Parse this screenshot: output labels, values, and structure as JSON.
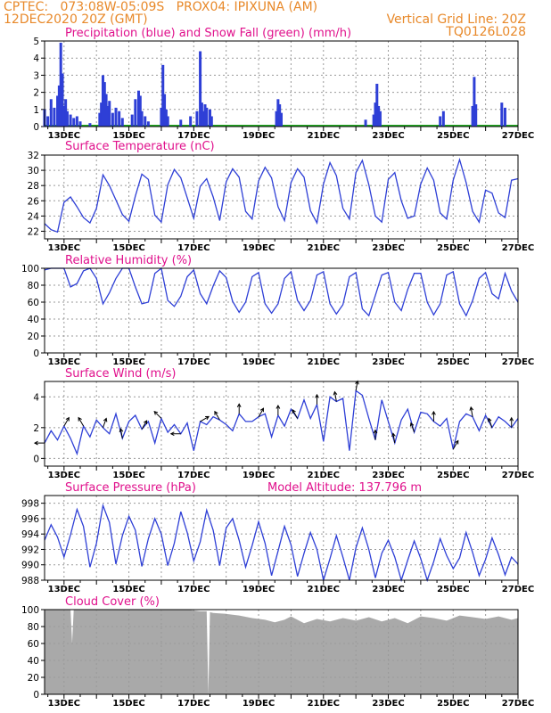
{
  "header": {
    "line1_left": "CPTEC:   073:08W-05:09S   PROX04: IPIXUNA (AM)",
    "line2_left": "12DEC2020 20Z (GMT)",
    "line2_right": "Vertical Grid Line: 20Z",
    "line3_right": "TQ0126L028"
  },
  "colors": {
    "header": "#e8892a",
    "title": "#e0108c",
    "line": "#2e3fd6",
    "snow": "#22aa22",
    "cloud": "#a9a9a9",
    "grid": "#9a9a9a"
  },
  "date_labels": [
    "13DEC",
    "15DEC",
    "17DEC",
    "19DEC",
    "21DEC",
    "23DEC",
    "25DEC",
    "27DEC"
  ],
  "chart_data": [
    {
      "type": "bar",
      "title": "Precipitation (blue) and Snow Fall (green) (mm/h)",
      "ylim": [
        0,
        5
      ],
      "yticks": [
        0,
        1,
        2,
        3,
        4,
        5
      ],
      "grid": true,
      "x_range_days": [
        12.4,
        27.0
      ],
      "series": [
        {
          "name": "Precipitation",
          "color": "#2e3fd6",
          "values": [
            [
              12.4,
              1.0
            ],
            [
              12.5,
              0.6
            ],
            [
              12.6,
              1.6
            ],
            [
              12.7,
              1.1
            ],
            [
              12.8,
              1.8
            ],
            [
              12.85,
              2.4
            ],
            [
              12.9,
              4.9
            ],
            [
              12.95,
              3.1
            ],
            [
              13.0,
              1.2
            ],
            [
              13.05,
              1.6
            ],
            [
              13.1,
              0.9
            ],
            [
              13.2,
              0.7
            ],
            [
              13.3,
              0.5
            ],
            [
              13.4,
              0.6
            ],
            [
              13.5,
              0.3
            ],
            [
              13.8,
              0.2
            ],
            [
              14.1,
              0.8
            ],
            [
              14.15,
              1.4
            ],
            [
              14.2,
              3.0
            ],
            [
              14.25,
              2.6
            ],
            [
              14.3,
              1.9
            ],
            [
              14.35,
              1.2
            ],
            [
              14.4,
              1.5
            ],
            [
              14.5,
              0.8
            ],
            [
              14.6,
              1.1
            ],
            [
              14.7,
              0.9
            ],
            [
              14.8,
              0.5
            ],
            [
              15.1,
              0.7
            ],
            [
              15.2,
              1.6
            ],
            [
              15.3,
              2.1
            ],
            [
              15.35,
              1.8
            ],
            [
              15.4,
              0.9
            ],
            [
              15.5,
              0.6
            ],
            [
              15.6,
              0.3
            ],
            [
              16.0,
              1.1
            ],
            [
              16.05,
              3.6
            ],
            [
              16.1,
              1.9
            ],
            [
              16.15,
              1.0
            ],
            [
              16.2,
              0.6
            ],
            [
              16.6,
              0.4
            ],
            [
              16.9,
              0.6
            ],
            [
              17.1,
              0.9
            ],
            [
              17.2,
              4.4
            ],
            [
              17.25,
              1.4
            ],
            [
              17.3,
              0.9
            ],
            [
              17.35,
              1.3
            ],
            [
              17.4,
              1.1
            ],
            [
              17.5,
              1.0
            ],
            [
              17.55,
              0.6
            ],
            [
              19.55,
              0.9
            ],
            [
              19.6,
              1.6
            ],
            [
              19.65,
              1.3
            ],
            [
              19.7,
              0.8
            ],
            [
              22.3,
              0.4
            ],
            [
              22.55,
              0.7
            ],
            [
              22.6,
              1.4
            ],
            [
              22.65,
              2.5
            ],
            [
              22.7,
              1.2
            ],
            [
              22.75,
              0.9
            ],
            [
              24.6,
              0.6
            ],
            [
              24.7,
              0.9
            ],
            [
              25.6,
              1.2
            ],
            [
              25.65,
              2.9
            ],
            [
              25.7,
              1.3
            ],
            [
              26.5,
              1.4
            ],
            [
              26.6,
              1.1
            ]
          ]
        },
        {
          "name": "Snow Fall",
          "color": "#22aa22",
          "values": [
            [
              12.4,
              0.05
            ],
            [
              27.0,
              0.05
            ]
          ]
        }
      ]
    },
    {
      "type": "line",
      "title": "Surface Temperature (nC)",
      "ylim": [
        21,
        32
      ],
      "yticks": [
        22,
        24,
        26,
        28,
        30,
        32
      ],
      "grid": true,
      "x": [
        12.4,
        12.6,
        12.8,
        13.0,
        13.2,
        13.4,
        13.6,
        13.8,
        14.0,
        14.2,
        14.4,
        14.6,
        14.8,
        15.0,
        15.2,
        15.4,
        15.6,
        15.8,
        16.0,
        16.2,
        16.4,
        16.6,
        16.8,
        17.0,
        17.2,
        17.4,
        17.6,
        17.8,
        18.0,
        18.2,
        18.4,
        18.6,
        18.8,
        19.0,
        19.2,
        19.4,
        19.6,
        19.8,
        20.0,
        20.2,
        20.4,
        20.6,
        20.8,
        21.0,
        21.2,
        21.4,
        21.6,
        21.8,
        22.0,
        22.2,
        22.4,
        22.6,
        22.8,
        23.0,
        23.2,
        23.4,
        23.6,
        23.8,
        24.0,
        24.2,
        24.4,
        24.6,
        24.8,
        25.0,
        25.2,
        25.4,
        25.6,
        25.8,
        26.0,
        26.2,
        26.4,
        26.6,
        26.8,
        27.0
      ],
      "y": [
        23.0,
        22.2,
        21.9,
        25.8,
        26.5,
        25.2,
        23.8,
        23.1,
        25.0,
        29.4,
        28.0,
        26.1,
        24.2,
        23.3,
        26.6,
        29.5,
        28.8,
        24.1,
        23.2,
        28.1,
        30.1,
        29.0,
        26.4,
        23.7,
        27.9,
        28.9,
        26.5,
        23.4,
        28.5,
        30.2,
        29.1,
        24.6,
        23.6,
        28.6,
        30.4,
        29.0,
        25.2,
        23.4,
        28.4,
        30.2,
        29.1,
        24.7,
        23.1,
        28.2,
        31.0,
        29.3,
        25.0,
        23.6,
        29.7,
        31.3,
        28.1,
        24.0,
        23.2,
        28.8,
        29.7,
        26.0,
        23.7,
        24.0,
        28.2,
        30.3,
        28.7,
        24.4,
        23.6,
        28.7,
        31.4,
        28.4,
        24.6,
        23.2,
        27.4,
        27.0,
        24.4,
        23.8,
        28.7,
        28.9
      ]
    },
    {
      "type": "line",
      "title": "Relative Humidity (%)",
      "ylim": [
        0,
        100
      ],
      "yticks": [
        0,
        20,
        40,
        60,
        80,
        100
      ],
      "grid": true,
      "x": [
        12.4,
        12.6,
        12.8,
        13.0,
        13.2,
        13.4,
        13.6,
        13.8,
        14.0,
        14.2,
        14.4,
        14.6,
        14.8,
        15.0,
        15.2,
        15.4,
        15.6,
        15.8,
        16.0,
        16.2,
        16.4,
        16.6,
        16.8,
        17.0,
        17.2,
        17.4,
        17.6,
        17.8,
        18.0,
        18.2,
        18.4,
        18.6,
        18.8,
        19.0,
        19.2,
        19.4,
        19.6,
        19.8,
        20.0,
        20.2,
        20.4,
        20.6,
        20.8,
        21.0,
        21.2,
        21.4,
        21.6,
        21.8,
        22.0,
        22.2,
        22.4,
        22.6,
        22.8,
        23.0,
        23.2,
        23.4,
        23.6,
        23.8,
        24.0,
        24.2,
        24.4,
        24.6,
        24.8,
        25.0,
        25.2,
        25.4,
        25.6,
        25.8,
        26.0,
        26.2,
        26.4,
        26.6,
        26.8,
        27.0
      ],
      "y": [
        98,
        100,
        100,
        100,
        78,
        82,
        97,
        100,
        88,
        58,
        71,
        88,
        100,
        100,
        78,
        58,
        60,
        94,
        100,
        62,
        55,
        67,
        90,
        98,
        70,
        58,
        79,
        97,
        89,
        61,
        48,
        60,
        90,
        95,
        58,
        47,
        58,
        88,
        96,
        62,
        50,
        62,
        92,
        96,
        58,
        46,
        57,
        90,
        95,
        52,
        44,
        68,
        92,
        95,
        60,
        50,
        75,
        94,
        94,
        60,
        45,
        58,
        92,
        96,
        58,
        44,
        62,
        88,
        95,
        70,
        64,
        94,
        73,
        60
      ]
    },
    {
      "type": "line",
      "title": "Surface Wind (m/s)",
      "ylim": [
        -0.5,
        5
      ],
      "yticks": [
        0,
        2,
        4
      ],
      "grid": true,
      "x": [
        12.4,
        12.6,
        12.8,
        13.0,
        13.2,
        13.4,
        13.6,
        13.8,
        14.0,
        14.2,
        14.4,
        14.6,
        14.8,
        15.0,
        15.2,
        15.4,
        15.6,
        15.8,
        16.0,
        16.2,
        16.4,
        16.6,
        16.8,
        17.0,
        17.2,
        17.4,
        17.6,
        17.8,
        18.0,
        18.2,
        18.4,
        18.6,
        18.8,
        19.0,
        19.2,
        19.4,
        19.6,
        19.8,
        20.0,
        20.2,
        20.4,
        20.6,
        20.8,
        21.0,
        21.2,
        21.4,
        21.6,
        21.8,
        22.0,
        22.2,
        22.4,
        22.6,
        22.8,
        23.0,
        23.2,
        23.4,
        23.6,
        23.8,
        24.0,
        24.2,
        24.4,
        24.6,
        24.8,
        25.0,
        25.2,
        25.4,
        25.6,
        25.8,
        26.0,
        26.2,
        26.4,
        26.6,
        26.8,
        27.0
      ],
      "y": [
        1.0,
        1.8,
        1.2,
        2.1,
        1.3,
        0.3,
        2.1,
        1.4,
        2.5,
        2.0,
        1.6,
        2.9,
        1.3,
        2.4,
        2.8,
        1.9,
        2.4,
        1.0,
        2.6,
        1.7,
        2.2,
        1.6,
        2.3,
        0.5,
        2.4,
        2.2,
        2.7,
        2.5,
        2.2,
        1.8,
        2.9,
        2.4,
        2.4,
        2.7,
        2.9,
        1.4,
        2.8,
        2.1,
        3.2,
        2.6,
        3.8,
        2.6,
        3.5,
        1.1,
        4.0,
        3.7,
        3.9,
        0.5,
        4.4,
        4.1,
        2.6,
        1.2,
        3.8,
        2.4,
        1.0,
        2.5,
        3.2,
        1.7,
        3.0,
        2.9,
        2.4,
        2.1,
        2.6,
        0.6,
        2.4,
        2.9,
        2.7,
        1.8,
        2.8,
        2.0,
        2.7,
        2.4,
        2.0,
        2.6
      ]
    },
    {
      "type": "line",
      "title": "Surface Pressure (hPa)",
      "annotation": "Model Altitude: 137.796 m",
      "ylim": [
        988,
        999
      ],
      "yticks": [
        988,
        990,
        992,
        994,
        996,
        998
      ],
      "grid": true,
      "x": [
        12.4,
        12.6,
        12.8,
        13.0,
        13.2,
        13.4,
        13.6,
        13.8,
        14.0,
        14.2,
        14.4,
        14.6,
        14.8,
        15.0,
        15.2,
        15.4,
        15.6,
        15.8,
        16.0,
        16.2,
        16.4,
        16.6,
        16.8,
        17.0,
        17.2,
        17.4,
        17.6,
        17.8,
        18.0,
        18.2,
        18.4,
        18.6,
        18.8,
        19.0,
        19.2,
        19.4,
        19.6,
        19.8,
        20.0,
        20.2,
        20.4,
        20.6,
        20.8,
        21.0,
        21.2,
        21.4,
        21.6,
        21.8,
        22.0,
        22.2,
        22.4,
        22.6,
        22.8,
        23.0,
        23.2,
        23.4,
        23.6,
        23.8,
        24.0,
        24.2,
        24.4,
        24.6,
        24.8,
        25.0,
        25.2,
        25.4,
        25.6,
        25.8,
        26.0,
        26.2,
        26.4,
        26.6,
        26.8,
        27.0
      ],
      "y": [
        993.2,
        995.2,
        993.6,
        991.0,
        993.9,
        997.2,
        995.0,
        989.7,
        992.8,
        997.7,
        995.5,
        990.1,
        993.8,
        996.3,
        994.5,
        989.8,
        993.4,
        996.0,
        994.0,
        989.9,
        992.8,
        996.9,
        994.2,
        990.5,
        993.0,
        997.1,
        994.5,
        989.9,
        994.8,
        996.0,
        993.2,
        989.7,
        992.5,
        995.6,
        992.8,
        988.6,
        991.8,
        995.0,
        992.6,
        988.5,
        991.5,
        994.2,
        992.0,
        987.8,
        990.8,
        993.8,
        991.0,
        988.0,
        992.2,
        994.8,
        992.0,
        988.3,
        991.5,
        993.2,
        991.0,
        987.9,
        990.6,
        993.1,
        990.8,
        988.0,
        990.4,
        993.4,
        991.2,
        989.5,
        990.9,
        994.2,
        991.6,
        988.6,
        990.7,
        993.5,
        991.3,
        988.7,
        991.0,
        990.1
      ]
    },
    {
      "type": "area",
      "title": "Cloud Cover (%)",
      "ylim": [
        0,
        100
      ],
      "yticks": [
        0,
        20,
        40,
        60,
        80,
        100
      ],
      "grid": true,
      "x": [
        12.4,
        12.8,
        13.2,
        13.25,
        13.3,
        13.6,
        14.0,
        14.4,
        14.8,
        15.2,
        15.6,
        16.0,
        16.4,
        16.8,
        17.2,
        17.4,
        17.45,
        17.5,
        17.6,
        18.0,
        18.4,
        18.8,
        19.2,
        19.5,
        19.8,
        20.0,
        20.4,
        20.8,
        21.2,
        21.6,
        22.0,
        22.4,
        22.8,
        23.2,
        23.6,
        24.0,
        24.4,
        24.8,
        25.2,
        25.6,
        26.0,
        26.4,
        26.8,
        27.0
      ],
      "y": [
        100,
        100,
        100,
        60,
        100,
        100,
        100,
        100,
        100,
        100,
        100,
        100,
        100,
        100,
        98,
        98,
        0,
        97,
        96,
        95,
        93,
        90,
        88,
        85,
        88,
        92,
        84,
        89,
        86,
        90,
        87,
        91,
        86,
        90,
        84,
        92,
        90,
        87,
        93,
        91,
        89,
        92,
        88,
        90
      ]
    }
  ]
}
